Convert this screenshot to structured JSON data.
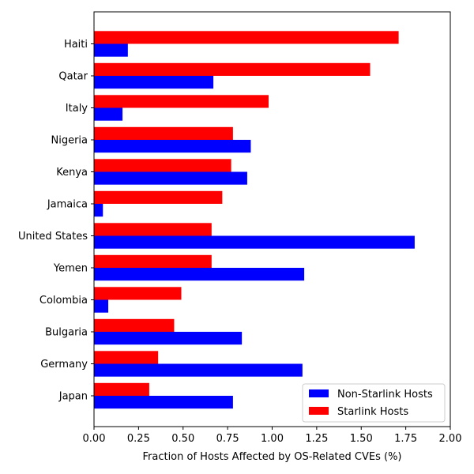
{
  "chart_data": {
    "type": "bar",
    "orientation": "horizontal",
    "title": "",
    "xlabel": "Fraction of Hosts Affected by OS-Related CVEs (%)",
    "ylabel": "",
    "xlim": [
      0,
      2
    ],
    "xticks": [
      "0.00",
      "0.25",
      "0.50",
      "0.75",
      "1.00",
      "1.25",
      "1.50",
      "1.75",
      "2.00"
    ],
    "grid": false,
    "legend_position": "bottom-right",
    "categories": [
      "Haiti",
      "Qatar",
      "Italy",
      "Nigeria",
      "Kenya",
      "Jamaica",
      "United States",
      "Yemen",
      "Colombia",
      "Bulgaria",
      "Germany",
      "Japan"
    ],
    "series": [
      {
        "name": "Non-Starlink Hosts",
        "color": "#0000ff",
        "values": [
          0.19,
          0.67,
          0.16,
          0.88,
          0.86,
          0.05,
          1.8,
          1.18,
          0.08,
          0.83,
          1.17,
          0.78
        ]
      },
      {
        "name": "Starlink Hosts",
        "color": "#ff0000",
        "values": [
          1.71,
          1.55,
          0.98,
          0.78,
          0.77,
          0.72,
          0.66,
          0.66,
          0.49,
          0.45,
          0.36,
          0.31
        ]
      }
    ]
  }
}
